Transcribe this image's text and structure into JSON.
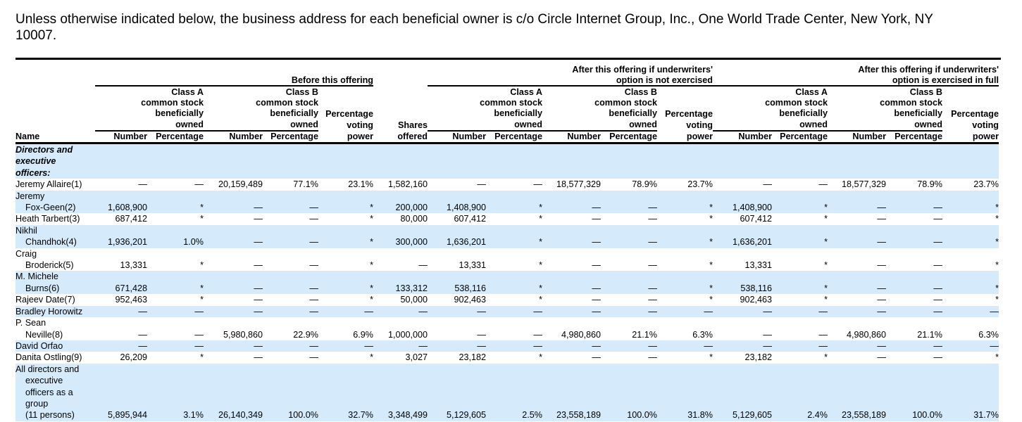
{
  "intro": "Unless otherwise indicated below, the business address for each beneficial owner is c/o Circle Internet Group, Inc., One World Trade Center, New York, NY 10007.",
  "header": {
    "groups": [
      "Before this offering",
      "After this offering if underwriters'\noption is not exercised",
      "After this offering if underwriters'\noption is exercised in full"
    ],
    "class_a": "Class A\ncommon stock\nbeneficially\nowned",
    "class_b": "Class B\ncommon stock\nbeneficially\nowned",
    "voting": "Percentage\nvoting\npower",
    "shares_offered": "Shares\noffered",
    "name": "Name",
    "number": "Number",
    "percentage": "Percentage"
  },
  "rows": [
    {
      "name": [
        "Directors and",
        "executive",
        "officers:"
      ],
      "section": true,
      "values": []
    },
    {
      "name": [
        "Jeremy Allaire(1)"
      ],
      "values": [
        "—",
        "—",
        "20,159,489",
        "77.1%",
        "23.1%",
        "1,582,160",
        "—",
        "—",
        "18,577,329",
        "78.9%",
        "23.7%",
        "—",
        "—",
        "18,577,329",
        "78.9%",
        "23.7%"
      ]
    },
    {
      "name": [
        "Jeremy",
        "Fox-Geen(2)"
      ],
      "values": [
        "1,608,900",
        "*",
        "—",
        "—",
        "*",
        "200,000",
        "1,408,900",
        "*",
        "—",
        "—",
        "*",
        "1,408,900",
        "*",
        "—",
        "—",
        "*"
      ]
    },
    {
      "name": [
        "Heath Tarbert(3)"
      ],
      "values": [
        "687,412",
        "*",
        "—",
        "—",
        "*",
        "80,000",
        "607,412",
        "*",
        "—",
        "—",
        "*",
        "607,412",
        "*",
        "—",
        "—",
        "*"
      ]
    },
    {
      "name": [
        "Nikhil",
        "Chandhok(4)"
      ],
      "values": [
        "1,936,201",
        "1.0%",
        "—",
        "—",
        "*",
        "300,000",
        "1,636,201",
        "*",
        "—",
        "—",
        "*",
        "1,636,201",
        "*",
        "—",
        "—",
        "*"
      ]
    },
    {
      "name": [
        "Craig",
        "Broderick(5)"
      ],
      "values": [
        "13,331",
        "*",
        "—",
        "—",
        "*",
        "—",
        "13,331",
        "*",
        "—",
        "—",
        "*",
        "13,331",
        "*",
        "—",
        "—",
        "*"
      ]
    },
    {
      "name": [
        "M. Michele",
        "Burns(6)"
      ],
      "values": [
        "671,428",
        "*",
        "—",
        "—",
        "*",
        "133,312",
        "538,116",
        "*",
        "—",
        "—",
        "*",
        "538,116",
        "*",
        "—",
        "—",
        "*"
      ]
    },
    {
      "name": [
        "Rajeev Date(7)"
      ],
      "values": [
        "952,463",
        "*",
        "—",
        "—",
        "*",
        "50,000",
        "902,463",
        "*",
        "—",
        "—",
        "*",
        "902,463",
        "*",
        "—",
        "—",
        "*"
      ]
    },
    {
      "name": [
        "Bradley Horowitz"
      ],
      "values": [
        "—",
        "—",
        "—",
        "—",
        "—",
        "—",
        "—",
        "—",
        "—",
        "—",
        "—",
        "—",
        "—",
        "—",
        "—",
        "—"
      ]
    },
    {
      "name": [
        "P. Sean",
        "Neville(8)"
      ],
      "values": [
        "—",
        "—",
        "5,980,860",
        "22.9%",
        "6.9%",
        "1,000,000",
        "—",
        "—",
        "4,980,860",
        "21.1%",
        "6.3%",
        "—",
        "—",
        "4,980,860",
        "21.1%",
        "6.3%"
      ]
    },
    {
      "name": [
        "David Orfao"
      ],
      "values": [
        "—",
        "—",
        "—",
        "—",
        "—",
        "—",
        "—",
        "—",
        "—",
        "—",
        "—",
        "—",
        "—",
        "—",
        "—",
        "—"
      ]
    },
    {
      "name": [
        "Danita Ostling(9)"
      ],
      "values": [
        "26,209",
        "*",
        "—",
        "—",
        "*",
        "3,027",
        "23,182",
        "*",
        "—",
        "—",
        "*",
        "23,182",
        "*",
        "—",
        "—",
        "*"
      ]
    },
    {
      "name": [
        "All directors and",
        "executive",
        "officers as a",
        "group",
        "(11 persons)"
      ],
      "values": [
        "5,895,944",
        "3.1%",
        "26,140,349",
        "100.0%",
        "32.7%",
        "3,348,499",
        "5,129,605",
        "2.5%",
        "23,558,189",
        "100.0%",
        "31.8%",
        "5,129,605",
        "2.4%",
        "23,558,189",
        "100.0%",
        "31.7%"
      ]
    }
  ],
  "colors": {
    "row_stripe": "#d5ebfb",
    "text": "#000000"
  }
}
